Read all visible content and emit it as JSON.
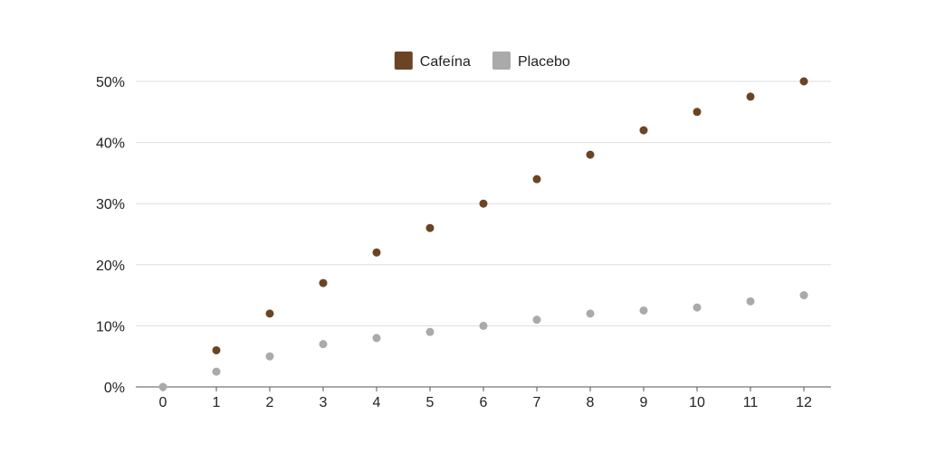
{
  "chart_data": {
    "type": "scatter",
    "title": "",
    "xlabel": "",
    "ylabel": "",
    "x": [
      0,
      1,
      2,
      3,
      4,
      5,
      6,
      7,
      8,
      9,
      10,
      11,
      12
    ],
    "x_ticks": [
      "0",
      "1",
      "2",
      "3",
      "4",
      "5",
      "6",
      "7",
      "8",
      "9",
      "10",
      "11",
      "12"
    ],
    "ylim": [
      0,
      50
    ],
    "y_ticks": [
      0,
      10,
      20,
      30,
      40,
      50
    ],
    "y_tick_labels": [
      "0%",
      "10%",
      "20%",
      "30%",
      "40%",
      "50%"
    ],
    "grid": true,
    "legend_position": "top-center",
    "series": [
      {
        "name": "Cafeína",
        "color": "#6b4423",
        "values": [
          null,
          6,
          12,
          17,
          22,
          26,
          30,
          34,
          38,
          42,
          45,
          47.5,
          50
        ]
      },
      {
        "name": "Placebo",
        "color": "#aaaaaa",
        "values": [
          0,
          2.5,
          5,
          7,
          8,
          9,
          10,
          11,
          12,
          12.5,
          13,
          14,
          15
        ]
      }
    ]
  }
}
